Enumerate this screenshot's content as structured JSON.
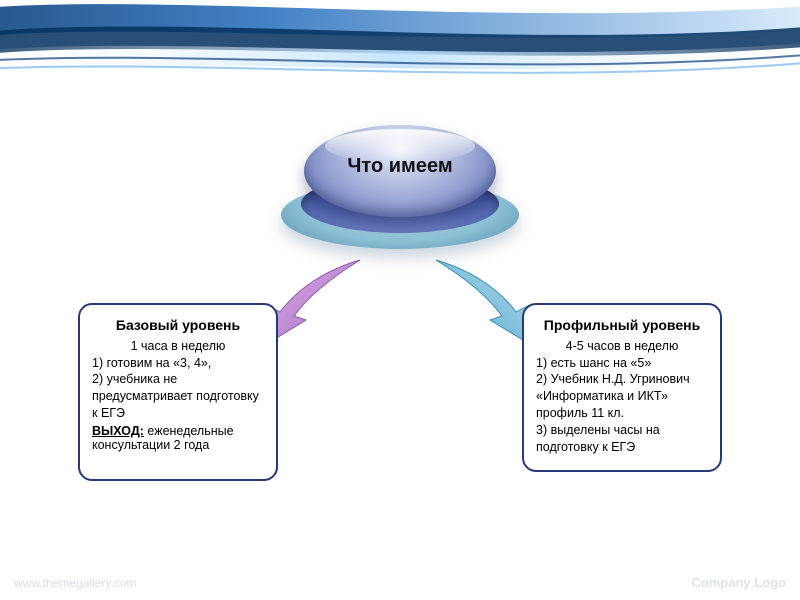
{
  "banner": {
    "stroke_color": "#0a4a8a",
    "highlight_color": "#a7d7ff",
    "dark_streak": "#022b55"
  },
  "center": {
    "label": "Что имеем",
    "label_fontsize": 20,
    "face_gradient_top": "#f2f4fb",
    "face_gradient_bottom": "#4c5d9e",
    "ring_inner_color": "#2d3f85",
    "ring_outer_color": "#8bbfd4"
  },
  "arrows": {
    "left_fill": "#b57ad0",
    "left_fill2": "#d2a3e4",
    "right_fill": "#61b6d7",
    "right_fill2": "#a4d7ea"
  },
  "left_panel": {
    "border_color": "#273a78",
    "title": "Базовый уровень",
    "subtitle": "1 часа в неделю",
    "items": [
      "1) готовим на «3, 4»,",
      "2) учебника не предусматривает подготовку к ЕГЭ"
    ],
    "out_label": "ВЫХОД:",
    "out_text": "еженедельные консультации 2 года"
  },
  "right_panel": {
    "border_color": "#273a78",
    "title": "Профильный уровень",
    "subtitle": "4-5 часов в неделю",
    "items": [
      "1) есть шанс на «5»",
      "2) Учебник Н.Д. Угринович «Информатика и ИКТ» профиль 11 кл.",
      "3) выделены часы на подготовку к ЕГЭ"
    ]
  },
  "watermark_left": "www.themegallery.com",
  "watermark_right": "Company Logo"
}
